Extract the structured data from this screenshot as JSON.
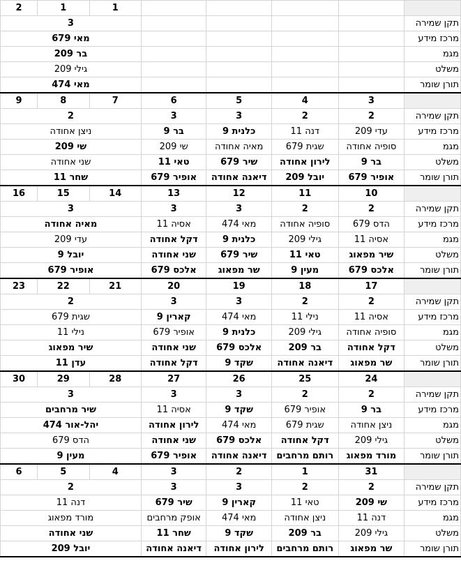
{
  "row_labels": [
    "תקן שמירה",
    "מרכז מידע",
    "מגמ",
    "משלט",
    "תורן שומר"
  ],
  "blocks": [
    {
      "header": [
        "2",
        "1",
        "1",
        "",
        "",
        "",
        "",
        ""
      ],
      "rows": [
        [
          {
            "t": "3",
            "b": 1,
            "span": 3
          },
          {
            "t": ""
          },
          {
            "t": ""
          },
          {
            "t": ""
          },
          {
            "t": ""
          }
        ],
        [
          {
            "t": "מאי 679",
            "b": 1,
            "span": 3
          },
          {
            "t": ""
          },
          {
            "t": ""
          },
          {
            "t": ""
          },
          {
            "t": ""
          }
        ],
        [
          {
            "t": "בר 209",
            "b": 1,
            "span": 3
          },
          {
            "t": ""
          },
          {
            "t": ""
          },
          {
            "t": ""
          },
          {
            "t": ""
          }
        ],
        [
          {
            "t": "גילי 209",
            "b": 0,
            "span": 3
          },
          {
            "t": ""
          },
          {
            "t": ""
          },
          {
            "t": ""
          },
          {
            "t": ""
          }
        ],
        [
          {
            "t": "מאי 474",
            "b": 1,
            "span": 3
          },
          {
            "t": ""
          },
          {
            "t": ""
          },
          {
            "t": ""
          },
          {
            "t": ""
          }
        ]
      ]
    },
    {
      "header": [
        "9",
        "8",
        "7",
        "6",
        "5",
        "4",
        "3",
        ""
      ],
      "rows": [
        [
          {
            "t": "2",
            "b": 1,
            "span": 3
          },
          {
            "t": "3",
            "b": 1
          },
          {
            "t": "3",
            "b": 1
          },
          {
            "t": "2",
            "b": 1
          },
          {
            "t": "2",
            "b": 1
          }
        ],
        [
          {
            "t": "ניצן אחודה",
            "b": 0,
            "span": 3
          },
          {
            "t": "בר 9",
            "b": 1
          },
          {
            "t": "כלנית 9",
            "b": 1
          },
          {
            "t": "דנה 11",
            "b": 0
          },
          {
            "t": "עדי 209",
            "b": 0
          }
        ],
        [
          {
            "t": "שי 209",
            "b": 1,
            "span": 3
          },
          {
            "t": "שי 209",
            "b": 0
          },
          {
            "t": "מאיה אחודה",
            "b": 0
          },
          {
            "t": "שגית 679",
            "b": 0
          },
          {
            "t": "סופיה אחודה",
            "b": 0
          }
        ],
        [
          {
            "t": "שני אחודה",
            "b": 0,
            "span": 3
          },
          {
            "t": "טאי 11",
            "b": 1
          },
          {
            "t": "שיר 679",
            "b": 1
          },
          {
            "t": "לירון אחודה",
            "b": 1
          },
          {
            "t": "בר 9",
            "b": 1
          }
        ],
        [
          {
            "t": "שחר 11",
            "b": 1,
            "span": 3
          },
          {
            "t": "אופיר 679",
            "b": 1
          },
          {
            "t": "דיאנה אחודה",
            "b": 1
          },
          {
            "t": "יובל 209",
            "b": 1
          },
          {
            "t": "אופיר 679",
            "b": 1
          }
        ]
      ]
    },
    {
      "header": [
        "16",
        "15",
        "14",
        "13",
        "12",
        "11",
        "10",
        ""
      ],
      "rows": [
        [
          {
            "t": "3",
            "b": 1,
            "span": 3
          },
          {
            "t": "3",
            "b": 1
          },
          {
            "t": "3",
            "b": 1
          },
          {
            "t": "2",
            "b": 1
          },
          {
            "t": "2",
            "b": 1
          }
        ],
        [
          {
            "t": "מאיה אחודה",
            "b": 1,
            "span": 3
          },
          {
            "t": "אסיה 11",
            "b": 0
          },
          {
            "t": "מאי 474",
            "b": 0
          },
          {
            "t": "סופיה אחודה",
            "b": 0
          },
          {
            "t": "הדס 679",
            "b": 0
          }
        ],
        [
          {
            "t": "עדי 209",
            "b": 0,
            "span": 3
          },
          {
            "t": "דקל אחודה",
            "b": 1
          },
          {
            "t": "כלנית 9",
            "b": 1
          },
          {
            "t": "גילי 209",
            "b": 0
          },
          {
            "t": "אסיה 11",
            "b": 0
          }
        ],
        [
          {
            "t": "יובל 9",
            "b": 1,
            "span": 3
          },
          {
            "t": "שני אחודה",
            "b": 1
          },
          {
            "t": "שיר 679",
            "b": 1
          },
          {
            "t": "טאי 11",
            "b": 1
          },
          {
            "t": "שיר מפאוג",
            "b": 1
          }
        ],
        [
          {
            "t": "אופיר 679",
            "b": 1,
            "span": 3
          },
          {
            "t": "אלכס 679",
            "b": 1
          },
          {
            "t": "שר מפאוג",
            "b": 1
          },
          {
            "t": "מעין 9",
            "b": 1
          },
          {
            "t": "אלכס 679",
            "b": 1
          }
        ]
      ]
    },
    {
      "header": [
        "23",
        "22",
        "21",
        "20",
        "19",
        "18",
        "17",
        ""
      ],
      "rows": [
        [
          {
            "t": "2",
            "b": 1,
            "span": 3
          },
          {
            "t": "3",
            "b": 1
          },
          {
            "t": "3",
            "b": 1
          },
          {
            "t": "2",
            "b": 1
          },
          {
            "t": "2",
            "b": 1
          }
        ],
        [
          {
            "t": "שגית 679",
            "b": 0,
            "span": 3
          },
          {
            "t": "קארין 9",
            "b": 1
          },
          {
            "t": "מאי 474",
            "b": 0
          },
          {
            "t": "נילי 11",
            "b": 0
          },
          {
            "t": "אסיה 11",
            "b": 0
          }
        ],
        [
          {
            "t": "נילי 11",
            "b": 0,
            "span": 3
          },
          {
            "t": "אופיר 679",
            "b": 0
          },
          {
            "t": "כלנית 9",
            "b": 1
          },
          {
            "t": "גילי 209",
            "b": 0
          },
          {
            "t": "סופיה אחודה",
            "b": 0
          }
        ],
        [
          {
            "t": "שיר מפאוג",
            "b": 1,
            "span": 3
          },
          {
            "t": "שני אחודה",
            "b": 1
          },
          {
            "t": "אלכס 679",
            "b": 1
          },
          {
            "t": "בר 209",
            "b": 1
          },
          {
            "t": "דקל אחודה",
            "b": 1
          }
        ],
        [
          {
            "t": "עדן 11",
            "b": 1,
            "span": 3
          },
          {
            "t": "דקל אחודה",
            "b": 1
          },
          {
            "t": "שקד 9",
            "b": 1
          },
          {
            "t": "דיאנה אחודה",
            "b": 1
          },
          {
            "t": "שר מפאוג",
            "b": 1
          }
        ]
      ]
    },
    {
      "header": [
        "30",
        "29",
        "28",
        "27",
        "26",
        "25",
        "24",
        ""
      ],
      "rows": [
        [
          {
            "t": "3",
            "b": 1,
            "span": 3
          },
          {
            "t": "3",
            "b": 1
          },
          {
            "t": "3",
            "b": 1
          },
          {
            "t": "2",
            "b": 1
          },
          {
            "t": "2",
            "b": 1
          }
        ],
        [
          {
            "t": "שיר מרחבים",
            "b": 1,
            "span": 3
          },
          {
            "t": "אסיה 11",
            "b": 0
          },
          {
            "t": "שקד 9",
            "b": 1
          },
          {
            "t": "אופיר 679",
            "b": 0
          },
          {
            "t": "בר 9",
            "b": 1
          }
        ],
        [
          {
            "t": "יהל-אור 474",
            "b": 1,
            "span": 3
          },
          {
            "t": "לירון אחודה",
            "b": 1
          },
          {
            "t": "מאי 474",
            "b": 0
          },
          {
            "t": "שגית 679",
            "b": 0
          },
          {
            "t": "ניצן אחודה",
            "b": 0
          }
        ],
        [
          {
            "t": "הדס 679",
            "b": 0,
            "span": 3
          },
          {
            "t": "שני אחודה",
            "b": 1
          },
          {
            "t": "אלכס 679",
            "b": 1
          },
          {
            "t": "דקל אחודה",
            "b": 1
          },
          {
            "t": "גילי 209",
            "b": 0
          }
        ],
        [
          {
            "t": "מעין 9",
            "b": 1,
            "span": 3
          },
          {
            "t": "אופיר 679",
            "b": 1
          },
          {
            "t": "דיאנה אחודה",
            "b": 1
          },
          {
            "t": "רותם מרחבים",
            "b": 1
          },
          {
            "t": "מורד מפאוג",
            "b": 1
          }
        ]
      ]
    },
    {
      "header": [
        "6",
        "5",
        "4",
        "3",
        "2",
        "1",
        "31",
        ""
      ],
      "rows": [
        [
          {
            "t": "2",
            "b": 1,
            "span": 3
          },
          {
            "t": "3",
            "b": 1
          },
          {
            "t": "3",
            "b": 1
          },
          {
            "t": "2",
            "b": 1
          },
          {
            "t": "2",
            "b": 1
          }
        ],
        [
          {
            "t": "דנה 11",
            "b": 0,
            "span": 3
          },
          {
            "t": "שיר 679",
            "b": 1
          },
          {
            "t": "קארין 9",
            "b": 1
          },
          {
            "t": "טאי 11",
            "b": 0
          },
          {
            "t": "שי 209",
            "b": 1
          }
        ],
        [
          {
            "t": "מורד מפאוג",
            "b": 0,
            "span": 3
          },
          {
            "t": "אופק מרחבים",
            "b": 0
          },
          {
            "t": "מאי 474",
            "b": 0
          },
          {
            "t": "ניצן אחודה",
            "b": 0
          },
          {
            "t": "דנה 11",
            "b": 0
          }
        ],
        [
          {
            "t": "שני אחודה",
            "b": 1,
            "span": 3
          },
          {
            "t": "שחר 11",
            "b": 1
          },
          {
            "t": "שקד 9",
            "b": 1
          },
          {
            "t": "בר 209",
            "b": 1
          },
          {
            "t": "גילי 209",
            "b": 0
          }
        ],
        [
          {
            "t": "יובל 209",
            "b": 1,
            "span": 3
          },
          {
            "t": "דיאנה אחודה",
            "b": 1
          },
          {
            "t": "לירון אחודה",
            "b": 1
          },
          {
            "t": "רותם מרחבים",
            "b": 1
          },
          {
            "t": "שר מפאוג",
            "b": 1
          }
        ]
      ]
    }
  ]
}
